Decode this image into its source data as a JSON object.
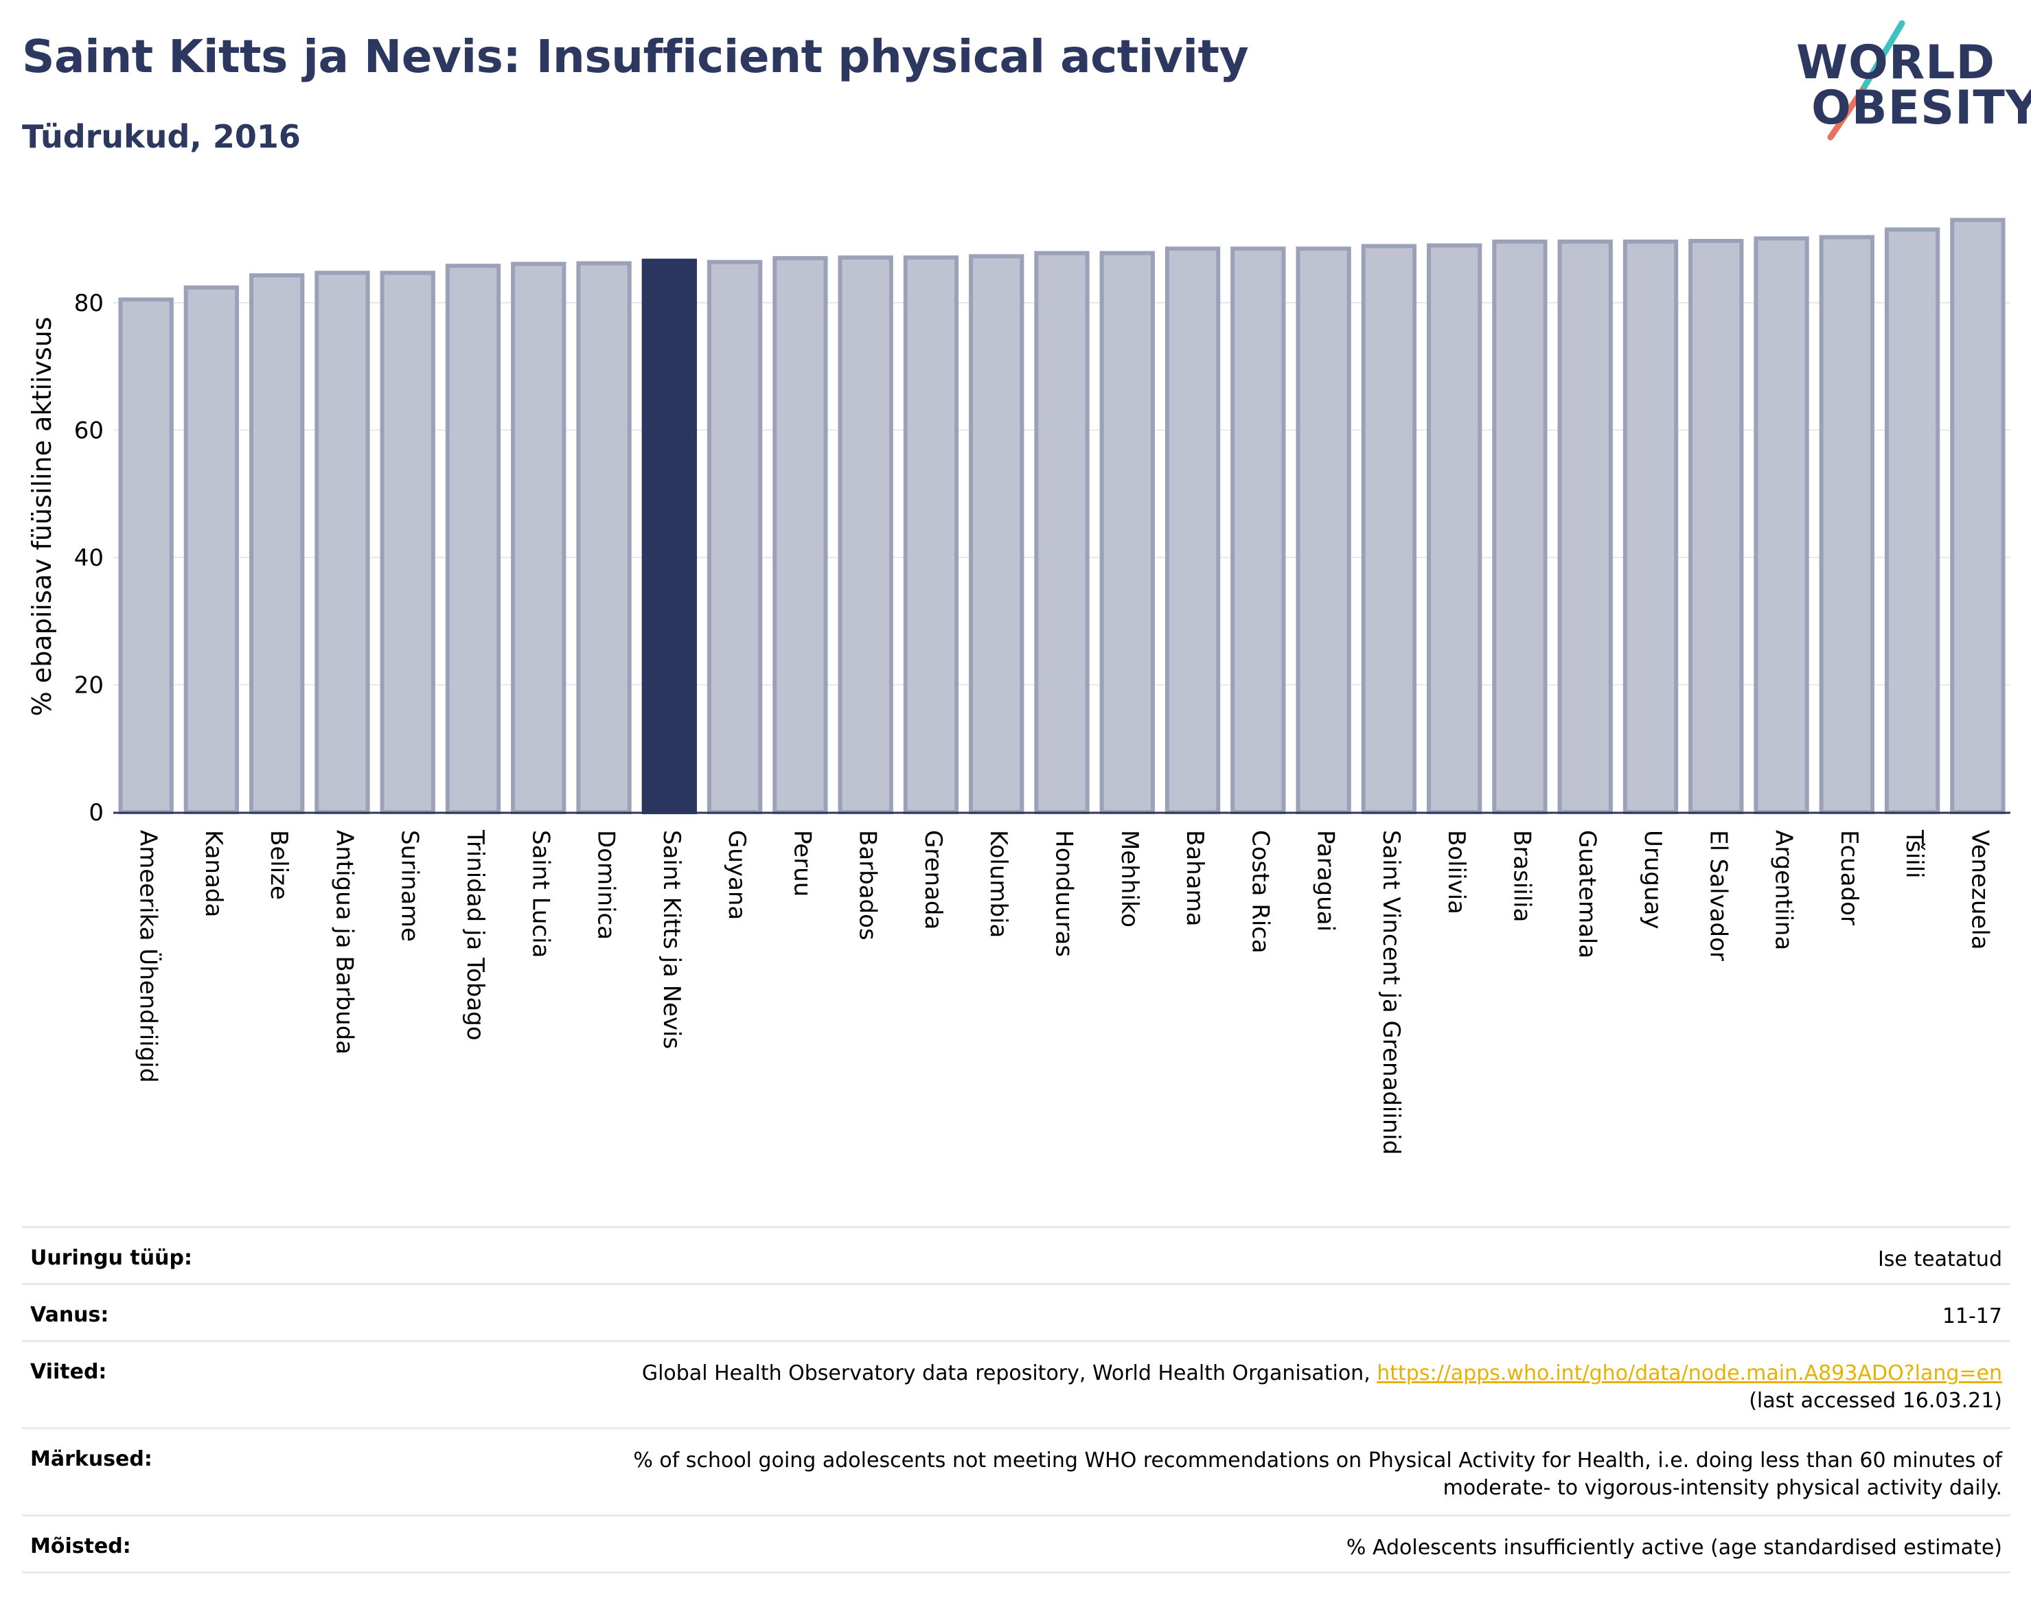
{
  "header": {
    "title": "Saint Kitts ja Nevis: Insufficient physical activity",
    "subtitle": "Tüdrukud, 2016"
  },
  "logo": {
    "line1": "WORLD",
    "line2": "OBESITY"
  },
  "colors": {
    "highlight": "#2b3660",
    "bar_fill": "#bfc3d1",
    "bar_edge": "#9ba1b8",
    "text": "#2d3860",
    "link": "#e8b100"
  },
  "chart_data": {
    "type": "bar",
    "ylabel": "% ebapiisav füüsiline aktiivsus",
    "xlabel": "",
    "ylim": [
      0,
      95
    ],
    "yticks": [
      0,
      20,
      40,
      60,
      80
    ],
    "grid": true,
    "highlight": "Saint Kitts ja Nevis",
    "categories": [
      "Ameerika Ühendriigid",
      "Kanada",
      "Belize",
      "Antigua ja Barbuda",
      "Suriname",
      "Trinidad ja Tobago",
      "Saint Lucia",
      "Dominica",
      "Saint Kitts ja Nevis",
      "Guyana",
      "Peruu",
      "Barbados",
      "Grenada",
      "Kolumbia",
      "Honduuras",
      "Mehhiko",
      "Bahama",
      "Costa Rica",
      "Paraguai",
      "Saint Vincent ja Grenadiinid",
      "Boliivia",
      "Brasiilia",
      "Guatemala",
      "Uruguay",
      "El Salvador",
      "Argentiina",
      "Ecuador",
      "Tšiili",
      "Venezuela"
    ],
    "values": [
      80.5,
      82.4,
      84.3,
      84.7,
      84.7,
      85.8,
      86.1,
      86.2,
      86.6,
      86.4,
      87.0,
      87.1,
      87.1,
      87.3,
      87.8,
      87.8,
      88.5,
      88.5,
      88.5,
      88.9,
      89.0,
      89.6,
      89.6,
      89.6,
      89.7,
      90.1,
      90.3,
      91.5,
      93.0
    ]
  },
  "table": {
    "rows": [
      {
        "label": "Uuringu tüüp:",
        "value": "Ise teatatud"
      },
      {
        "label": "Vanus:",
        "value": "11-17"
      },
      {
        "label": "Viited:",
        "value_prefix": "Global Health Observatory data repository, World Health Organisation, ",
        "link": "https://apps.who.int/gho/data/node.main.A893ADO?lang=en",
        "value_suffix": "(last accessed 16.03.21)"
      },
      {
        "label": "Märkused:",
        "value_line1": "% of school going adolescents not meeting WHO recommendations on Physical Activity for Health, i.e. doing less than 60 minutes of",
        "value_line2": "moderate- to vigorous-intensity physical activity daily."
      },
      {
        "label": "Mõisted:",
        "value": "% Adolescents insufficiently active (age standardised estimate)"
      }
    ]
  }
}
